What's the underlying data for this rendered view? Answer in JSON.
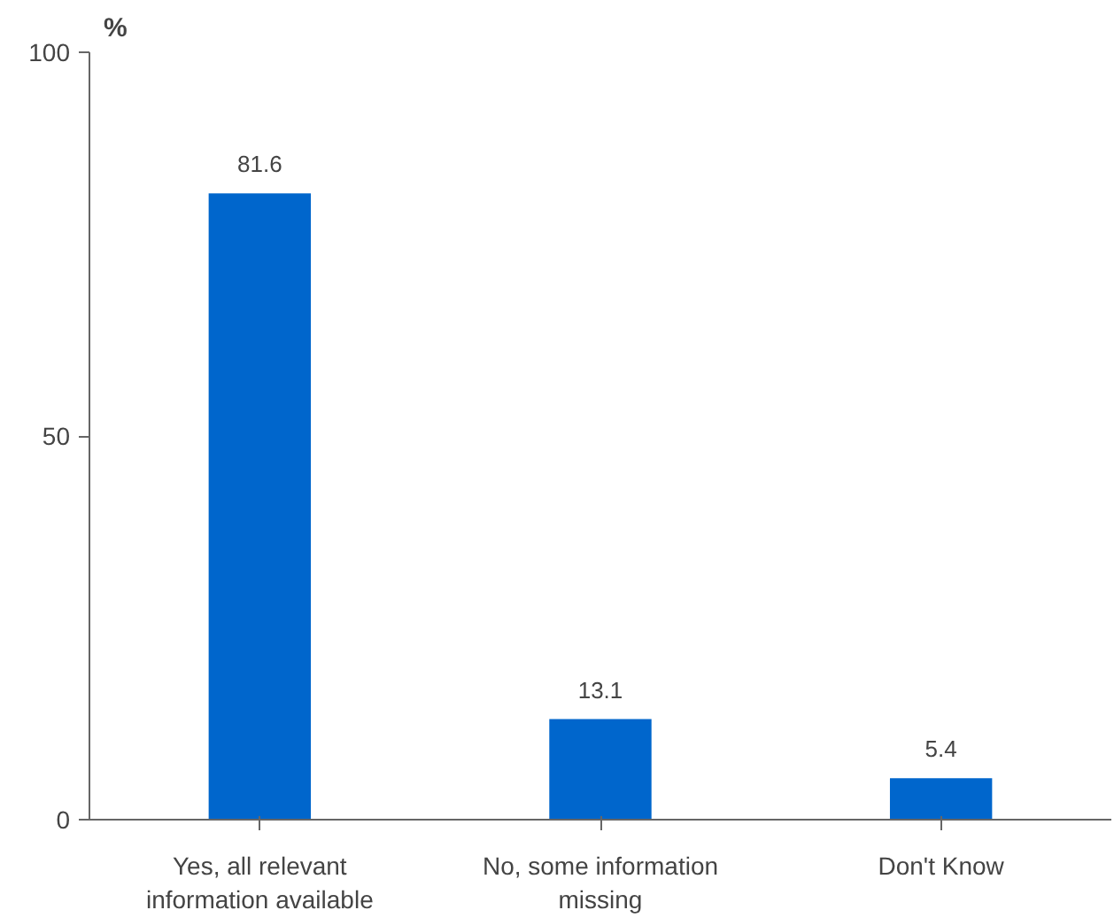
{
  "chart_data": {
    "type": "bar",
    "ylabel": "%",
    "categories": [
      "Yes, all relevant information available",
      "No, some information missing",
      "Don't Know"
    ],
    "values": [
      81.6,
      13.1,
      5.4
    ],
    "color": "#0066cc",
    "ylim": [
      0,
      100
    ],
    "yticks": [
      0,
      50,
      100
    ],
    "grid": false,
    "data_labels": true
  }
}
